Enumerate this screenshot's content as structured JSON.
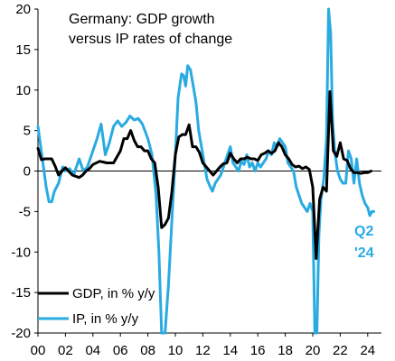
{
  "chart_data": {
    "type": "line",
    "title_lines": [
      "Germany: GDP growth",
      "versus IP rates of change"
    ],
    "xlabel": "",
    "ylabel": "",
    "xlim": [
      2000,
      2025
    ],
    "ylim": [
      -20,
      20
    ],
    "x_ticks": [
      2000,
      2002,
      2004,
      2006,
      2008,
      2010,
      2012,
      2014,
      2016,
      2018,
      2020,
      2022,
      2024
    ],
    "x_tick_labels": [
      "00",
      "02",
      "04",
      "06",
      "08",
      "10",
      "12",
      "14",
      "16",
      "18",
      "20",
      "22",
      "24"
    ],
    "y_ticks": [
      -20,
      -15,
      -10,
      -5,
      0,
      5,
      10,
      15,
      20
    ],
    "y_tick_labels": [
      "-20",
      "-15",
      "-10",
      "-5",
      "0",
      "5",
      "10",
      "15",
      "20"
    ],
    "grid": false,
    "legend_position": "bottom-left",
    "annotation": {
      "lines": [
        "Q2",
        "'24"
      ],
      "color": "#29ABE2"
    },
    "series": [
      {
        "name": "GDP, in % y/y",
        "color": "#000000",
        "points": [
          [
            2000.0,
            2.8
          ],
          [
            2000.25,
            1.4
          ],
          [
            2000.5,
            1.5
          ],
          [
            2000.75,
            1.5
          ],
          [
            2001.0,
            1.5
          ],
          [
            2001.25,
            0.6
          ],
          [
            2001.5,
            -0.5
          ],
          [
            2001.75,
            0.0
          ],
          [
            2002.0,
            0.4
          ],
          [
            2002.5,
            -0.5
          ],
          [
            2003.0,
            -0.8
          ],
          [
            2003.25,
            -0.5
          ],
          [
            2003.5,
            0.0
          ],
          [
            2003.75,
            0.3
          ],
          [
            2004.0,
            0.8
          ],
          [
            2004.5,
            1.2
          ],
          [
            2005.0,
            1.0
          ],
          [
            2005.5,
            1.0
          ],
          [
            2006.0,
            2.5
          ],
          [
            2006.25,
            4.0
          ],
          [
            2006.5,
            4.0
          ],
          [
            2006.75,
            5.0
          ],
          [
            2007.0,
            3.8
          ],
          [
            2007.25,
            3.0
          ],
          [
            2007.5,
            3.0
          ],
          [
            2007.75,
            2.5
          ],
          [
            2008.0,
            2.5
          ],
          [
            2008.25,
            1.5
          ],
          [
            2008.5,
            1.0
          ],
          [
            2008.75,
            -2.0
          ],
          [
            2009.0,
            -7.0
          ],
          [
            2009.25,
            -6.6
          ],
          [
            2009.5,
            -5.8
          ],
          [
            2009.75,
            -2.5
          ],
          [
            2010.0,
            2.0
          ],
          [
            2010.25,
            4.2
          ],
          [
            2010.5,
            4.5
          ],
          [
            2010.75,
            4.5
          ],
          [
            2011.0,
            5.7
          ],
          [
            2011.25,
            3.0
          ],
          [
            2011.5,
            3.0
          ],
          [
            2011.75,
            2.3
          ],
          [
            2012.0,
            1.0
          ],
          [
            2012.25,
            0.5
          ],
          [
            2012.5,
            0.0
          ],
          [
            2012.75,
            -0.5
          ],
          [
            2013.0,
            0.0
          ],
          [
            2013.25,
            0.5
          ],
          [
            2013.5,
            0.9
          ],
          [
            2013.75,
            1.0
          ],
          [
            2014.0,
            2.2
          ],
          [
            2014.25,
            1.5
          ],
          [
            2014.5,
            1.0
          ],
          [
            2014.75,
            1.5
          ],
          [
            2015.0,
            1.5
          ],
          [
            2015.25,
            1.7
          ],
          [
            2015.5,
            1.5
          ],
          [
            2015.75,
            1.5
          ],
          [
            2016.0,
            1.3
          ],
          [
            2016.25,
            2.0
          ],
          [
            2016.5,
            2.2
          ],
          [
            2016.75,
            2.5
          ],
          [
            2017.0,
            2.2
          ],
          [
            2017.25,
            2.5
          ],
          [
            2017.5,
            3.5
          ],
          [
            2017.75,
            3.0
          ],
          [
            2018.0,
            2.0
          ],
          [
            2018.25,
            1.5
          ],
          [
            2018.5,
            0.8
          ],
          [
            2018.75,
            0.5
          ],
          [
            2019.0,
            0.6
          ],
          [
            2019.25,
            0.3
          ],
          [
            2019.5,
            0.5
          ],
          [
            2019.75,
            0.2
          ],
          [
            2020.0,
            -2.0
          ],
          [
            2020.25,
            -10.8
          ],
          [
            2020.5,
            -3.5
          ],
          [
            2020.75,
            -2.0
          ],
          [
            2021.0,
            -2.5
          ],
          [
            2021.25,
            9.8
          ],
          [
            2021.5,
            2.5
          ],
          [
            2021.75,
            1.8
          ],
          [
            2022.0,
            3.5
          ],
          [
            2022.25,
            1.5
          ],
          [
            2022.5,
            1.3
          ],
          [
            2022.75,
            0.3
          ],
          [
            2023.0,
            -0.2
          ],
          [
            2023.25,
            -0.2
          ],
          [
            2023.5,
            -0.3
          ],
          [
            2023.75,
            -0.2
          ],
          [
            2024.0,
            -0.2
          ],
          [
            2024.25,
            0.0
          ]
        ]
      },
      {
        "name": "IP, in % y/y",
        "color": "#29ABE2",
        "points": [
          [
            2000.0,
            5.5
          ],
          [
            2000.2,
            3.0
          ],
          [
            2000.4,
            0.5
          ],
          [
            2000.6,
            -2.0
          ],
          [
            2000.8,
            -3.8
          ],
          [
            2001.0,
            -3.8
          ],
          [
            2001.2,
            -2.5
          ],
          [
            2001.5,
            -1.5
          ],
          [
            2001.8,
            0.5
          ],
          [
            2002.0,
            0.0
          ],
          [
            2002.3,
            0.3
          ],
          [
            2002.6,
            -0.5
          ],
          [
            2003.0,
            1.5
          ],
          [
            2003.3,
            0.0
          ],
          [
            2003.6,
            0.5
          ],
          [
            2004.0,
            2.5
          ],
          [
            2004.3,
            4.0
          ],
          [
            2004.6,
            5.8
          ],
          [
            2004.9,
            2.0
          ],
          [
            2005.2,
            3.5
          ],
          [
            2005.5,
            5.5
          ],
          [
            2005.8,
            6.2
          ],
          [
            2006.1,
            5.5
          ],
          [
            2006.4,
            6.0
          ],
          [
            2006.7,
            6.8
          ],
          [
            2007.0,
            6.3
          ],
          [
            2007.3,
            6.5
          ],
          [
            2007.6,
            5.8
          ],
          [
            2008.0,
            4.0
          ],
          [
            2008.3,
            2.0
          ],
          [
            2008.6,
            -3.0
          ],
          [
            2008.8,
            -10.0
          ],
          [
            2009.0,
            -20.0
          ],
          [
            2009.25,
            -20.0
          ],
          [
            2009.5,
            -14.0
          ],
          [
            2009.75,
            -6.0
          ],
          [
            2010.0,
            2.0
          ],
          [
            2010.2,
            9.0
          ],
          [
            2010.45,
            12.0
          ],
          [
            2010.6,
            11.8
          ],
          [
            2010.75,
            10.5
          ],
          [
            2010.9,
            13.0
          ],
          [
            2011.1,
            12.5
          ],
          [
            2011.3,
            10.5
          ],
          [
            2011.5,
            8.5
          ],
          [
            2011.7,
            5.0
          ],
          [
            2011.9,
            3.0
          ],
          [
            2012.1,
            1.0
          ],
          [
            2012.3,
            -1.0
          ],
          [
            2012.5,
            -1.8
          ],
          [
            2012.7,
            -2.5
          ],
          [
            2012.9,
            -1.5
          ],
          [
            2013.1,
            -1.0
          ],
          [
            2013.3,
            -0.5
          ],
          [
            2013.5,
            0.5
          ],
          [
            2013.7,
            1.5
          ],
          [
            2014.0,
            3.0
          ],
          [
            2014.2,
            1.0
          ],
          [
            2014.4,
            0.5
          ],
          [
            2014.6,
            0.0
          ],
          [
            2014.8,
            1.2
          ],
          [
            2015.0,
            0.8
          ],
          [
            2015.2,
            2.0
          ],
          [
            2015.4,
            0.5
          ],
          [
            2015.6,
            1.0
          ],
          [
            2015.8,
            0.0
          ],
          [
            2016.0,
            1.0
          ],
          [
            2016.2,
            0.5
          ],
          [
            2016.4,
            1.0
          ],
          [
            2016.6,
            1.5
          ],
          [
            2016.8,
            2.5
          ],
          [
            2017.0,
            2.0
          ],
          [
            2017.2,
            3.5
          ],
          [
            2017.4,
            3.0
          ],
          [
            2017.6,
            4.0
          ],
          [
            2017.8,
            3.5
          ],
          [
            2018.0,
            3.0
          ],
          [
            2018.2,
            1.0
          ],
          [
            2018.4,
            0.5
          ],
          [
            2018.6,
            0.0
          ],
          [
            2018.8,
            -2.0
          ],
          [
            2019.0,
            -3.0
          ],
          [
            2019.2,
            -4.0
          ],
          [
            2019.4,
            -4.5
          ],
          [
            2019.6,
            -5.0
          ],
          [
            2019.8,
            -4.0
          ],
          [
            2020.0,
            -5.0
          ],
          [
            2020.15,
            -20.0
          ],
          [
            2020.3,
            -20.0
          ],
          [
            2020.45,
            -8.0
          ],
          [
            2020.6,
            -3.5
          ],
          [
            2020.8,
            -1.0
          ],
          [
            2021.0,
            4.0
          ],
          [
            2021.15,
            20.0
          ],
          [
            2021.3,
            17.0
          ],
          [
            2021.45,
            6.0
          ],
          [
            2021.6,
            2.5
          ],
          [
            2021.8,
            0.0
          ],
          [
            2022.0,
            -1.0
          ],
          [
            2022.2,
            -1.5
          ],
          [
            2022.4,
            -1.5
          ],
          [
            2022.6,
            2.5
          ],
          [
            2022.8,
            1.5
          ],
          [
            2023.0,
            -1.5
          ],
          [
            2023.2,
            1.5
          ],
          [
            2023.4,
            -1.5
          ],
          [
            2023.6,
            -3.0
          ],
          [
            2023.8,
            -4.0
          ],
          [
            2024.0,
            -4.5
          ],
          [
            2024.15,
            -5.5
          ],
          [
            2024.3,
            -5.0
          ],
          [
            2024.45,
            -5.0
          ]
        ]
      }
    ]
  }
}
